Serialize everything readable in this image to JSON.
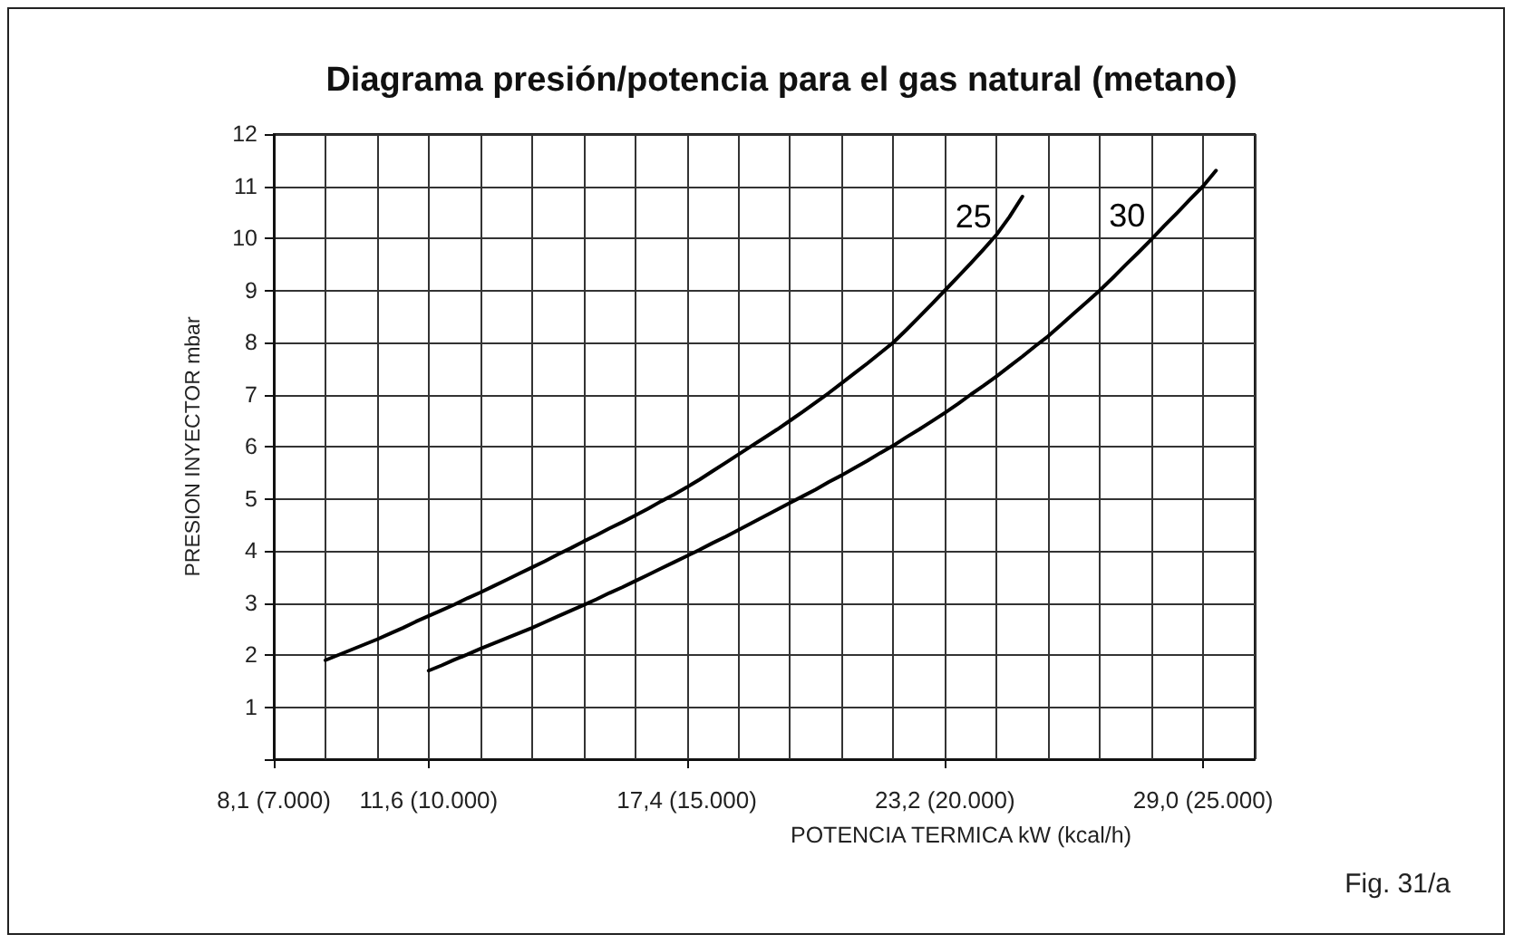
{
  "chart_data": {
    "type": "line",
    "title": "Diagrama presión/potencia para el gas natural (metano)",
    "xlabel": "POTENCIA TERMICA kW (kcal/h)",
    "ylabel": "PRESION INYECTOR mbar",
    "annotations": [
      "Fig. 31/a"
    ],
    "categories": [
      "8,1 (7.000)",
      null,
      null,
      null,
      null,
      null,
      null,
      null,
      null,
      null,
      null,
      null,
      "11,6 (10.000)",
      null,
      null,
      null,
      null,
      null,
      null,
      null,
      null,
      null,
      null,
      null,
      null,
      null,
      null,
      null,
      null,
      null,
      null,
      null,
      "17,4 (15.000)",
      null,
      null,
      null,
      null,
      null,
      null,
      null,
      null,
      null,
      null,
      null,
      null,
      null,
      null,
      null,
      null,
      null,
      null,
      null,
      "23,2 (20.000)",
      null,
      null,
      null,
      null,
      null,
      null,
      null,
      null,
      null,
      null,
      null,
      null,
      null,
      null,
      null,
      null,
      null,
      null,
      null,
      "29,0 (25.000)",
      null,
      null,
      null,
      null
    ],
    "series": [
      {
        "name": "25",
        "color": "#000000",
        "values": [
          null,
          null,
          null,
          null,
          1.9,
          2.0,
          2.1,
          2.2,
          2.3,
          2.41,
          2.52,
          2.64,
          2.75,
          2.86,
          2.97,
          3.09,
          3.2,
          3.32,
          3.44,
          3.56,
          3.68,
          3.8,
          3.93,
          4.05,
          4.18,
          4.3,
          4.43,
          4.55,
          4.68,
          4.81,
          4.95,
          5.08,
          5.22,
          5.37,
          5.53,
          5.69,
          5.85,
          6.01,
          6.17,
          6.33,
          6.5,
          6.67,
          6.85,
          7.03,
          7.22,
          7.41,
          7.6,
          7.8,
          8.0,
          8.24,
          8.49,
          8.74,
          9.0,
          9.26,
          9.52,
          9.79,
          10.07,
          10.41,
          10.8,
          null,
          null,
          null,
          null,
          null,
          null,
          null,
          null,
          null,
          null,
          null,
          null,
          null,
          null,
          null,
          null,
          null,
          null
        ]
      },
      {
        "name": "30",
        "color": "#000000",
        "values": [
          null,
          null,
          null,
          null,
          null,
          null,
          null,
          null,
          null,
          null,
          null,
          null,
          1.7,
          1.8,
          1.91,
          2.01,
          2.12,
          2.22,
          2.32,
          2.42,
          2.52,
          2.63,
          2.74,
          2.85,
          2.96,
          3.07,
          3.19,
          3.3,
          3.42,
          3.54,
          3.66,
          3.78,
          3.9,
          4.02,
          4.15,
          4.27,
          4.4,
          4.53,
          4.66,
          4.79,
          4.92,
          5.05,
          5.18,
          5.32,
          5.45,
          5.59,
          5.73,
          5.88,
          6.02,
          6.18,
          6.33,
          6.49,
          6.65,
          6.82,
          7.0,
          7.17,
          7.35,
          7.54,
          7.73,
          7.93,
          8.12,
          8.34,
          8.56,
          8.78,
          9.0,
          9.24,
          9.49,
          9.73,
          9.98,
          10.24,
          10.49,
          10.75,
          11.0,
          11.3,
          null,
          null,
          null
        ]
      }
    ],
    "ylim": [
      0,
      12
    ],
    "yticks": [
      {
        "value": 0,
        "label": null
      },
      1,
      2,
      3,
      4,
      5,
      6,
      7,
      8,
      9,
      10,
      11,
      12
    ],
    "grid": true,
    "marker": "none",
    "line_style": "solid"
  }
}
